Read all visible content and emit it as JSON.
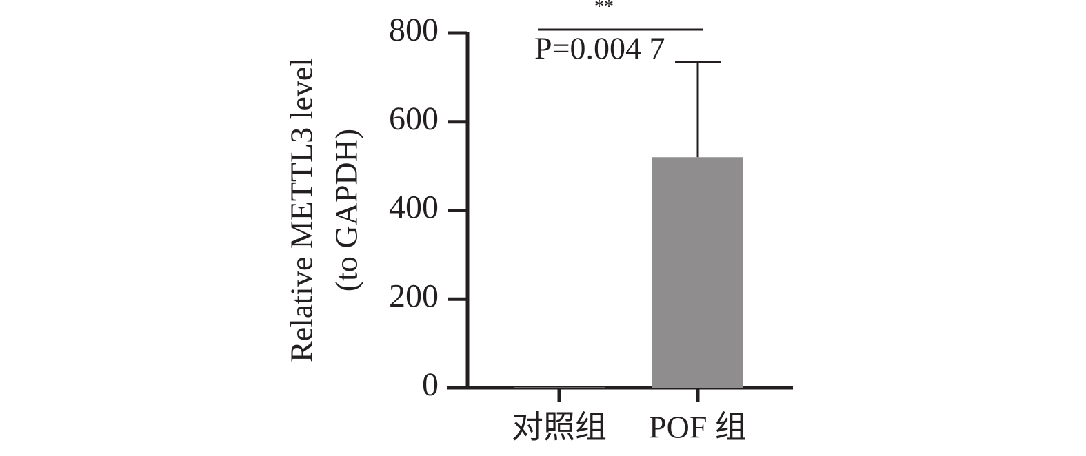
{
  "chart_data": {
    "type": "bar",
    "ylabel": [
      "Relative METTL3 level",
      "(to GAPDH)"
    ],
    "categories": [
      "对照组",
      "POF 组"
    ],
    "values": [
      1,
      520
    ],
    "errors": [
      0,
      215
    ],
    "color": "#8f8d8e",
    "ylim": [
      0,
      800
    ],
    "yticks": [
      0,
      200,
      400,
      600,
      800
    ],
    "annotations": {
      "significance": "**",
      "p_value": "P=0.004 7"
    }
  }
}
